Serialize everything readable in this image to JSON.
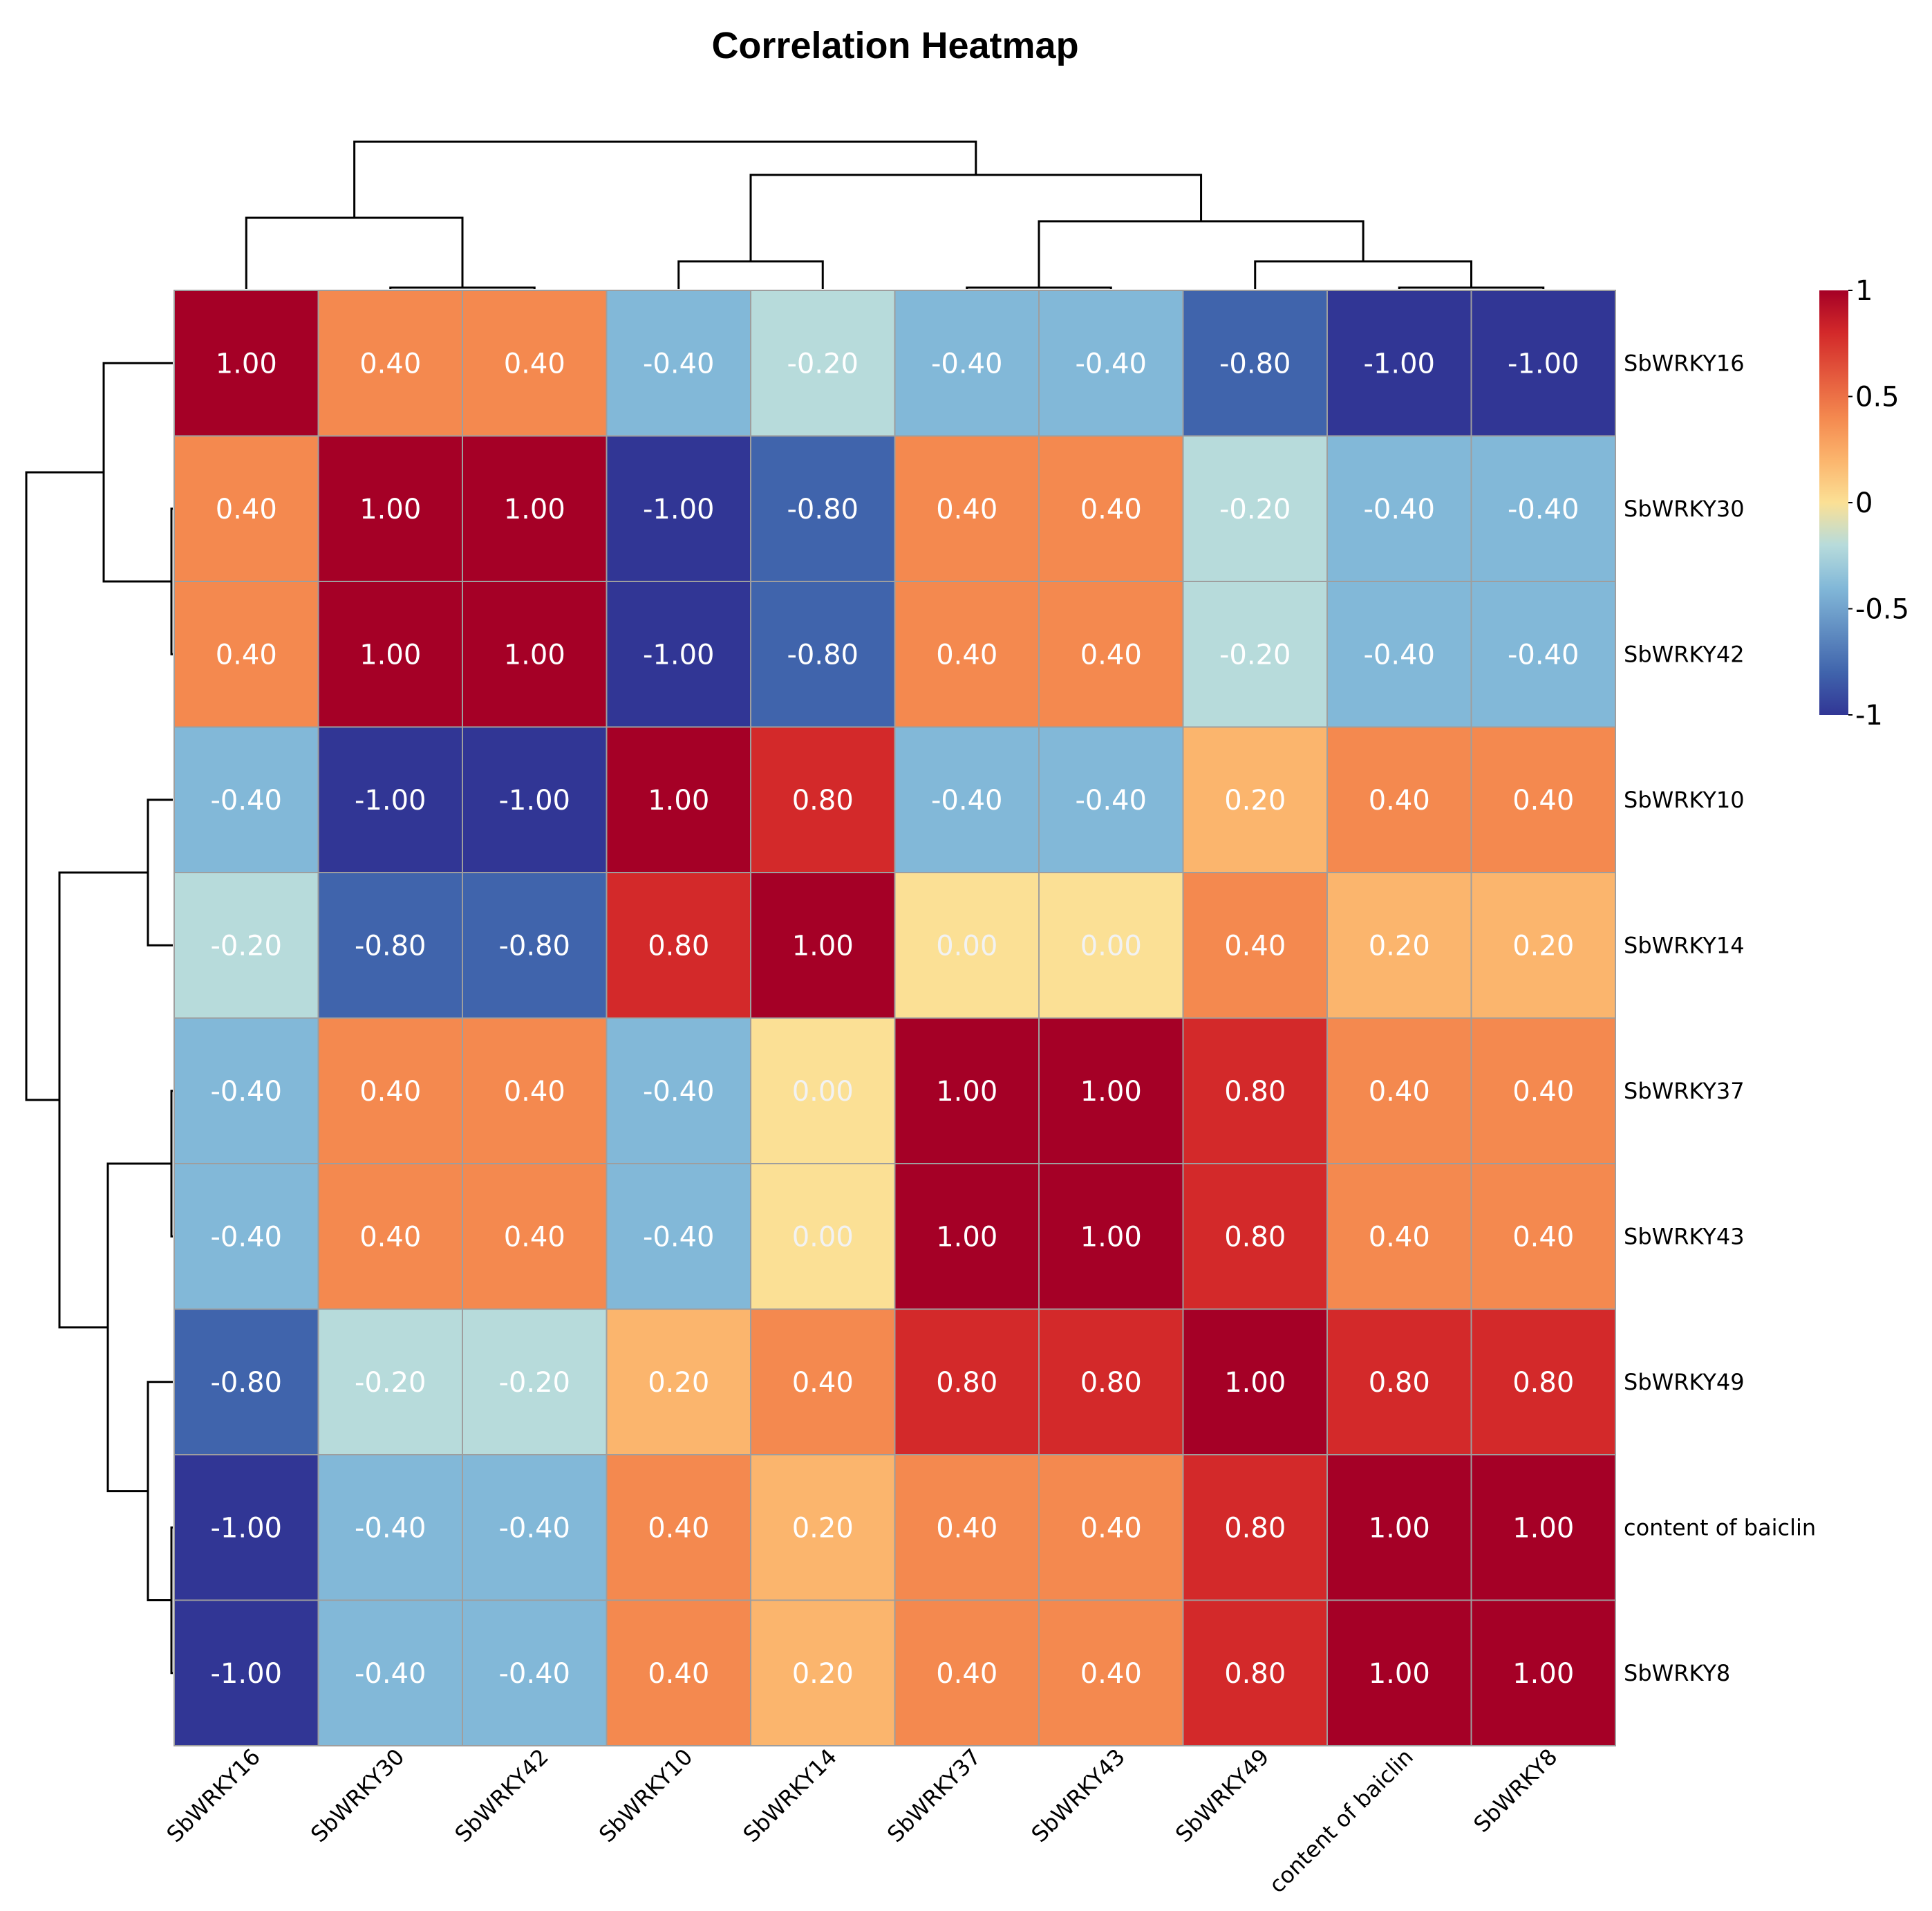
{
  "chart_data": {
    "type": "heatmap",
    "title": "Correlation Heatmap",
    "row_labels": [
      "SbWRKY16",
      "SbWRKY30",
      "SbWRKY42",
      "SbWRKY10",
      "SbWRKY14",
      "SbWRKY37",
      "SbWRKY43",
      "SbWRKY49",
      "content of baiclin",
      "SbWRKY8"
    ],
    "col_labels": [
      "SbWRKY16",
      "SbWRKY30",
      "SbWRKY42",
      "SbWRKY10",
      "SbWRKY14",
      "SbWRKY37",
      "SbWRKY43",
      "SbWRKY49",
      "content of baiclin",
      "SbWRKY8"
    ],
    "values": [
      [
        1.0,
        0.4,
        0.4,
        -0.4,
        -0.2,
        -0.4,
        -0.4,
        -0.8,
        -1.0,
        -1.0
      ],
      [
        0.4,
        1.0,
        1.0,
        -1.0,
        -0.8,
        0.4,
        0.4,
        -0.2,
        -0.4,
        -0.4
      ],
      [
        0.4,
        1.0,
        1.0,
        -1.0,
        -0.8,
        0.4,
        0.4,
        -0.2,
        -0.4,
        -0.4
      ],
      [
        -0.4,
        -1.0,
        -1.0,
        1.0,
        0.8,
        -0.4,
        -0.4,
        0.2,
        0.4,
        0.4
      ],
      [
        -0.2,
        -0.8,
        -0.8,
        0.8,
        1.0,
        0.0,
        0.0,
        0.4,
        0.2,
        0.2
      ],
      [
        -0.4,
        0.4,
        0.4,
        -0.4,
        0.0,
        1.0,
        1.0,
        0.8,
        0.4,
        0.4
      ],
      [
        -0.4,
        0.4,
        0.4,
        -0.4,
        0.0,
        1.0,
        1.0,
        0.8,
        0.4,
        0.4
      ],
      [
        -0.8,
        -0.2,
        -0.2,
        0.2,
        0.4,
        0.8,
        0.8,
        1.0,
        0.8,
        0.8
      ],
      [
        -1.0,
        -0.4,
        -0.4,
        0.4,
        0.2,
        0.4,
        0.4,
        0.8,
        1.0,
        1.0
      ],
      [
        -1.0,
        -0.4,
        -0.4,
        0.4,
        0.2,
        0.4,
        0.4,
        0.8,
        1.0,
        1.0
      ]
    ],
    "color_scale": {
      "range": [
        -1,
        1
      ],
      "colors": {
        "-1.0": "#313695",
        "-0.8": "#4064ac",
        "-0.4": "#82b8d8",
        "-0.2": "#b7dbdb",
        "0.0": "#fbe095",
        "0.2": "#fbb56d",
        "0.4": "#f4894f",
        "0.8": "#d3292a",
        "1.0": "#a50026"
      }
    },
    "legend": {
      "ticks": [
        1,
        0.5,
        0,
        -0.5,
        -1
      ],
      "tick_labels": [
        "1",
        "0.5",
        "0",
        "-0.5",
        "-1"
      ],
      "placement": "right"
    },
    "cell_value_format": "2 decimals",
    "dendrogram": {
      "rows": true,
      "cols": true
    }
  }
}
